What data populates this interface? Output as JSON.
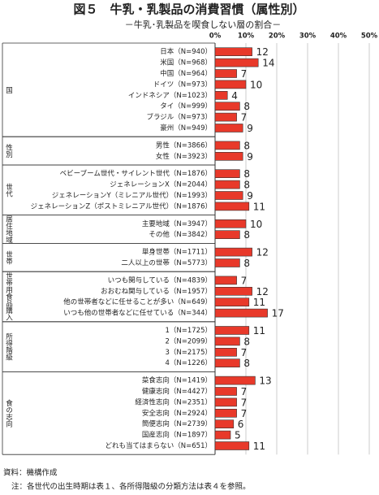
{
  "chart_data": {
    "type": "bar",
    "title": "図５　牛乳・乳製品の消費習慣（属性別）",
    "subtitle": "－牛乳･乳製品を喫食しない層の割合－",
    "xlim": [
      0,
      50
    ],
    "xticks": [
      {
        "value": 0,
        "label": "0%"
      },
      {
        "value": 10,
        "label": "10%"
      },
      {
        "value": 20,
        "label": "20%"
      },
      {
        "value": 30,
        "label": "30%"
      },
      {
        "value": 40,
        "label": "40%"
      },
      {
        "value": 50,
        "label": "50%"
      }
    ],
    "color": "#e8392a",
    "grid": true,
    "groups": [
      {
        "name": "国",
        "categories": [
          "日本（N=940）",
          "米国（N=968）",
          "中国（N=964）",
          "ドイツ（N=973）",
          "インドネシア（N=1023）",
          "タイ（N=999）",
          "ブラジル（N=973）",
          "豪州（N=949）"
        ],
        "values": [
          12,
          14,
          7,
          10,
          4,
          8,
          7,
          9
        ]
      },
      {
        "name": "性別",
        "categories": [
          "男性（N=3866）",
          "女性（N=3923）"
        ],
        "values": [
          8,
          9
        ]
      },
      {
        "name": "世代",
        "categories": [
          "ベビーブーム世代・サイレント世代（N=1876）",
          "ジェネレーションX（N=2044）",
          "ジェネレーションY（ミレニアル世代）（N=1993）",
          "ジェネレーションZ（ポストミレニアル世代）（N=1876）"
        ],
        "values": [
          8,
          8,
          9,
          11
        ]
      },
      {
        "name": "居住地域",
        "categories": [
          "主要地域（N=3947）",
          "その他（N=3842）"
        ],
        "values": [
          10,
          8
        ]
      },
      {
        "name": "世帯",
        "categories": [
          "単身世帯（N=1711）",
          "二人以上の世帯（N=5773）"
        ],
        "values": [
          12,
          8
        ]
      },
      {
        "name": "世帯用食品購入",
        "categories": [
          "いつも関与している（N=4839）",
          "おおむね関与している（N=1957）",
          "他の世帯者などに任せることが多い（N=649）",
          "いつも他の世帯者などに任せている（N=344）"
        ],
        "values": [
          7,
          12,
          11,
          17
        ]
      },
      {
        "name": "所得階級",
        "categories": [
          "1（N=1725）",
          "2（N=2099）",
          "3（N=2175）",
          "4（N=1226）"
        ],
        "values": [
          11,
          8,
          7,
          8
        ]
      },
      {
        "name": "食の志向",
        "categories": [
          "菜食志向（N=1419）",
          "健康志向（N=4427）",
          "経済性志向（N=2351）",
          "安全志向（N=2924）",
          "簡便志向（N=2739）",
          "国産志向（N=1897）",
          "どれも当てはまらない（N=651）"
        ],
        "values": [
          13,
          7,
          7,
          7,
          6,
          5,
          11
        ]
      }
    ],
    "source": "資料：機構作成",
    "note": "注：各世代の出生時期は表１、各所得階級の分類方法は表４を参照。"
  }
}
